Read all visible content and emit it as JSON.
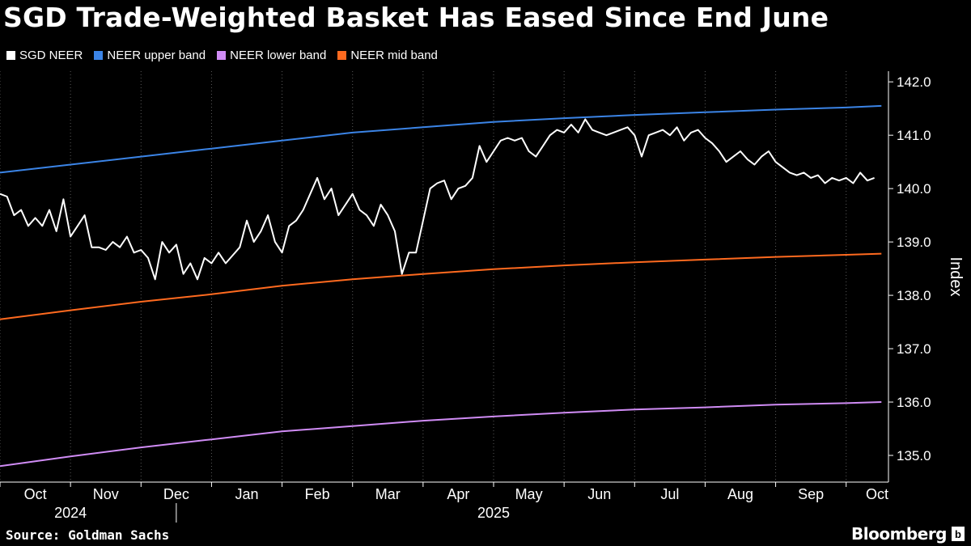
{
  "colors": {
    "background": "#000000",
    "sgd_neer": "#ffffff",
    "upper_band": "#3b84e6",
    "lower_band": "#d08cf5",
    "mid_band": "#ff6a1f",
    "grid": "#5a5a5a"
  },
  "footer": {
    "source": "Source: Goldman Sachs",
    "brand": "Bloomberg",
    "brand_badge": "b"
  },
  "chart_data": {
    "type": "line",
    "title": "SGD Trade-Weighted Basket Has Eased Since End June",
    "ylabel": "Index",
    "xlabel": "",
    "ylim": [
      134.5,
      142.2
    ],
    "y_ticks": [
      135.0,
      136.0,
      137.0,
      138.0,
      139.0,
      140.0,
      141.0,
      142.0
    ],
    "y_tick_labels": [
      "135.0",
      "136.0",
      "137.0",
      "138.0",
      "139.0",
      "140.0",
      "141.0",
      "142.0"
    ],
    "x_range_months": [
      0,
      12.6
    ],
    "x_month_ticks": [
      0,
      1,
      2,
      3,
      4,
      5,
      6,
      7,
      8,
      9,
      10,
      11,
      12
    ],
    "x_tick_labels": [
      "Oct",
      "Nov",
      "Dec",
      "Jan",
      "Feb",
      "Mar",
      "Apr",
      "May",
      "Jun",
      "Jul",
      "Aug",
      "Sep",
      "Oct"
    ],
    "year_labels": [
      {
        "label": "2024",
        "center_month": 1
      },
      {
        "label": "2025",
        "center_month": 7
      }
    ],
    "year_divider_month": 2.5,
    "grid": "vertical dotted",
    "legend_position": "top-left",
    "series": [
      {
        "name": "SGD NEER",
        "color": "#ffffff",
        "x": [
          0,
          0.1,
          0.2,
          0.3,
          0.4,
          0.5,
          0.6,
          0.7,
          0.8,
          0.9,
          1.0,
          1.1,
          1.2,
          1.3,
          1.4,
          1.5,
          1.6,
          1.7,
          1.8,
          1.9,
          2.0,
          2.1,
          2.2,
          2.3,
          2.4,
          2.5,
          2.6,
          2.7,
          2.8,
          2.9,
          3.0,
          3.1,
          3.2,
          3.3,
          3.4,
          3.5,
          3.6,
          3.7,
          3.8,
          3.9,
          4.0,
          4.1,
          4.2,
          4.3,
          4.4,
          4.5,
          4.6,
          4.7,
          4.8,
          4.9,
          5.0,
          5.1,
          5.2,
          5.3,
          5.4,
          5.5,
          5.6,
          5.7,
          5.8,
          5.9,
          6.0,
          6.1,
          6.2,
          6.3,
          6.4,
          6.5,
          6.6,
          6.7,
          6.8,
          6.9,
          7.0,
          7.1,
          7.2,
          7.3,
          7.4,
          7.5,
          7.6,
          7.7,
          7.8,
          7.9,
          8.0,
          8.1,
          8.2,
          8.3,
          8.4,
          8.5,
          8.6,
          8.7,
          8.8,
          8.9,
          9.0,
          9.1,
          9.2,
          9.3,
          9.4,
          9.5,
          9.6,
          9.7,
          9.8,
          9.9,
          10.0,
          10.1,
          10.2,
          10.3,
          10.4,
          10.5,
          10.6,
          10.7,
          10.8,
          10.9,
          11.0,
          11.1,
          11.2,
          11.3,
          11.4,
          11.5,
          11.6,
          11.7,
          11.8,
          11.9,
          12.0,
          12.1,
          12.2,
          12.3,
          12.4
        ],
        "values": [
          139.9,
          139.85,
          139.5,
          139.6,
          139.3,
          139.45,
          139.3,
          139.6,
          139.2,
          139.8,
          139.1,
          139.3,
          139.5,
          138.9,
          138.9,
          138.85,
          139.0,
          138.9,
          139.1,
          138.8,
          138.85,
          138.7,
          138.3,
          139.0,
          138.8,
          138.95,
          138.4,
          138.6,
          138.3,
          138.7,
          138.6,
          138.8,
          138.6,
          138.75,
          138.9,
          139.4,
          139.0,
          139.2,
          139.5,
          139.0,
          138.8,
          139.3,
          139.4,
          139.6,
          139.9,
          140.2,
          139.8,
          140.0,
          139.5,
          139.7,
          139.9,
          139.6,
          139.5,
          139.3,
          139.7,
          139.5,
          139.2,
          138.4,
          138.8,
          138.8,
          139.4,
          140.0,
          140.1,
          140.15,
          139.8,
          140.0,
          140.05,
          140.2,
          140.8,
          140.5,
          140.7,
          140.9,
          140.95,
          140.9,
          140.95,
          140.7,
          140.6,
          140.8,
          141.0,
          141.1,
          141.05,
          141.2,
          141.05,
          141.3,
          141.1,
          141.05,
          141.0,
          141.05,
          141.1,
          141.15,
          141.0,
          140.6,
          141.0,
          141.05,
          141.1,
          141.0,
          141.15,
          140.9,
          141.05,
          141.1,
          140.95,
          140.85,
          140.7,
          140.5,
          140.6,
          140.7,
          140.55,
          140.45,
          140.6,
          140.7,
          140.5,
          140.4,
          140.3,
          140.25,
          140.3,
          140.2,
          140.25,
          140.1,
          140.2,
          140.15,
          140.2,
          140.1,
          140.3,
          140.15,
          140.2
        ]
      },
      {
        "name": "NEER upper band",
        "color": "#3b84e6",
        "x": [
          0,
          1,
          2,
          3,
          4,
          5,
          6,
          7,
          8,
          9,
          10,
          11,
          12,
          12.5
        ],
        "values": [
          140.3,
          140.45,
          140.6,
          140.75,
          140.9,
          141.05,
          141.15,
          141.25,
          141.32,
          141.38,
          141.43,
          141.48,
          141.52,
          141.55
        ]
      },
      {
        "name": "NEER lower band",
        "color": "#d08cf5",
        "x": [
          0,
          1,
          2,
          3,
          4,
          5,
          6,
          7,
          8,
          9,
          10,
          11,
          12,
          12.5
        ],
        "values": [
          134.8,
          134.98,
          135.15,
          135.3,
          135.45,
          135.55,
          135.65,
          135.73,
          135.8,
          135.86,
          135.9,
          135.95,
          135.98,
          136.0
        ]
      },
      {
        "name": "NEER mid band",
        "color": "#ff6a1f",
        "x": [
          0,
          1,
          2,
          3,
          4,
          5,
          6,
          7,
          8,
          9,
          10,
          11,
          12,
          12.5
        ],
        "values": [
          137.55,
          137.72,
          137.88,
          138.02,
          138.18,
          138.3,
          138.4,
          138.49,
          138.56,
          138.62,
          138.67,
          138.72,
          138.76,
          138.78
        ]
      }
    ]
  }
}
